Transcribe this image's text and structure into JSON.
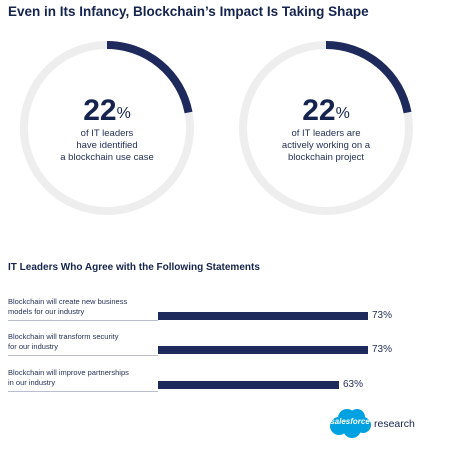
{
  "title": "Even in Its Infancy, Blockchain’s Impact Is Taking Shape",
  "colors": {
    "navy": "#1f2a5c",
    "ring_track": "#eeeeee",
    "divider": "#b9bfcf",
    "logo_blue": "#00a1e0"
  },
  "chart_data": [
    {
      "type": "pie",
      "value": 22,
      "unit": "%",
      "caption": [
        "of IT leaders",
        "have identified",
        "a blockchain use case"
      ]
    },
    {
      "type": "pie",
      "value": 22,
      "unit": "%",
      "caption": [
        "of IT leaders are",
        "actively working on a",
        "blockchain project"
      ]
    },
    {
      "type": "bar",
      "title": "IT Leaders Who Agree with the Following Statements",
      "xlim": [
        0,
        100
      ],
      "categories": [
        [
          "Blockchain will create new business",
          "models for our industry"
        ],
        [
          "Blockchain will transform security",
          "for our industry"
        ],
        [
          "Blockchain will improve partnerships",
          "in our industry"
        ]
      ],
      "values": [
        73,
        73,
        63
      ],
      "value_labels": [
        "73%",
        "73%",
        "63%"
      ]
    }
  ],
  "logo": {
    "name": "salesforce-cloud-logo",
    "word": "salesforce",
    "suffix": "research"
  }
}
